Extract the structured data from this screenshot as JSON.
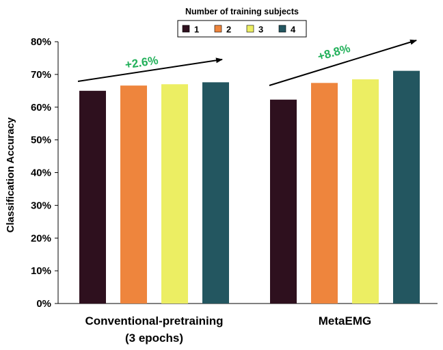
{
  "chart_data": {
    "type": "bar",
    "title": "",
    "xlabel": "",
    "ylabel": "Classification Accuracy",
    "ylim": [
      0,
      80
    ],
    "yticks": [
      "0%",
      "10%",
      "20%",
      "30%",
      "40%",
      "50%",
      "60%",
      "70%",
      "80%"
    ],
    "categories": [
      {
        "line1": "Conventional-pretraining",
        "line2": "(3 epochs)"
      },
      {
        "line1": "MetaEMG",
        "line2": ""
      }
    ],
    "legend_title": "Number of training subjects",
    "legend_position": "top-center",
    "series": [
      {
        "name": "1",
        "color": "#2e101e",
        "values": [
          65.0,
          62.3
        ]
      },
      {
        "name": "2",
        "color": "#ee853d",
        "values": [
          66.6,
          67.4
        ]
      },
      {
        "name": "3",
        "color": "#ecee63",
        "values": [
          67.0,
          68.5
        ]
      },
      {
        "name": "4",
        "color": "#235660",
        "values": [
          67.6,
          71.1
        ]
      }
    ],
    "annotations": [
      {
        "text": "+2.6%",
        "group": 0,
        "color": "#22b05a"
      },
      {
        "text": "+8.8%",
        "group": 1,
        "color": "#22b05a"
      }
    ]
  }
}
